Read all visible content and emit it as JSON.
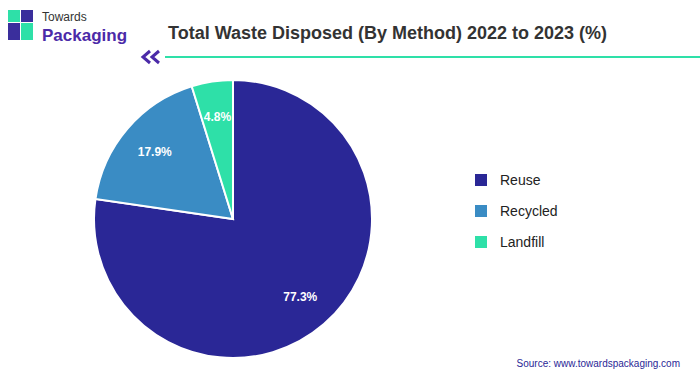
{
  "logo": [
    "Towards",
    "Packaging"
  ],
  "chart_data": {
    "type": "pie",
    "title": "Total Waste Disposed (By Method) 2022 to 2023 (%)",
    "categories": [
      "Reuse",
      "Recycled",
      "Landfill"
    ],
    "values": [
      77.3,
      17.9,
      4.8
    ],
    "value_labels": [
      "77.3%",
      "17.9%",
      "4.8%"
    ],
    "colors": [
      "#2a2796",
      "#3a8cc4",
      "#2ee0a8"
    ],
    "data_labels": true,
    "legend": "right",
    "source": "Source: www.towardspackaging.com"
  }
}
